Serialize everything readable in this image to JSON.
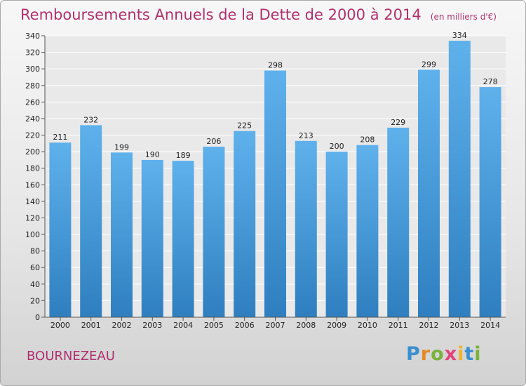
{
  "chart_data": {
    "type": "bar",
    "title": "Remboursements Annuels de la Dette de 2000 à 2014",
    "unit_note": "(en milliers d'€)",
    "categories": [
      "2000",
      "2001",
      "2002",
      "2003",
      "2004",
      "2005",
      "2006",
      "2007",
      "2008",
      "2009",
      "2010",
      "2011",
      "2012",
      "2013",
      "2014"
    ],
    "values": [
      211,
      232,
      199,
      190,
      189,
      206,
      225,
      298,
      213,
      200,
      208,
      229,
      299,
      334,
      278
    ],
    "ylim": [
      0,
      340
    ],
    "yticks": [
      0,
      20,
      40,
      60,
      80,
      100,
      120,
      140,
      160,
      180,
      200,
      220,
      240,
      260,
      280,
      300,
      320,
      340
    ],
    "xlabel": "",
    "ylabel": "",
    "grid": true,
    "bar_color": "#4a9ad6"
  },
  "commune": "BOURNEZEAU",
  "brand": {
    "letters": [
      "P",
      "r",
      "o",
      "x",
      "i",
      "t",
      "i"
    ],
    "colors": [
      "#3a8fd0",
      "#e5892a",
      "#7ab23a",
      "#e2437a",
      "#f0b429",
      "#3a8fd0",
      "#7ab23a"
    ]
  }
}
